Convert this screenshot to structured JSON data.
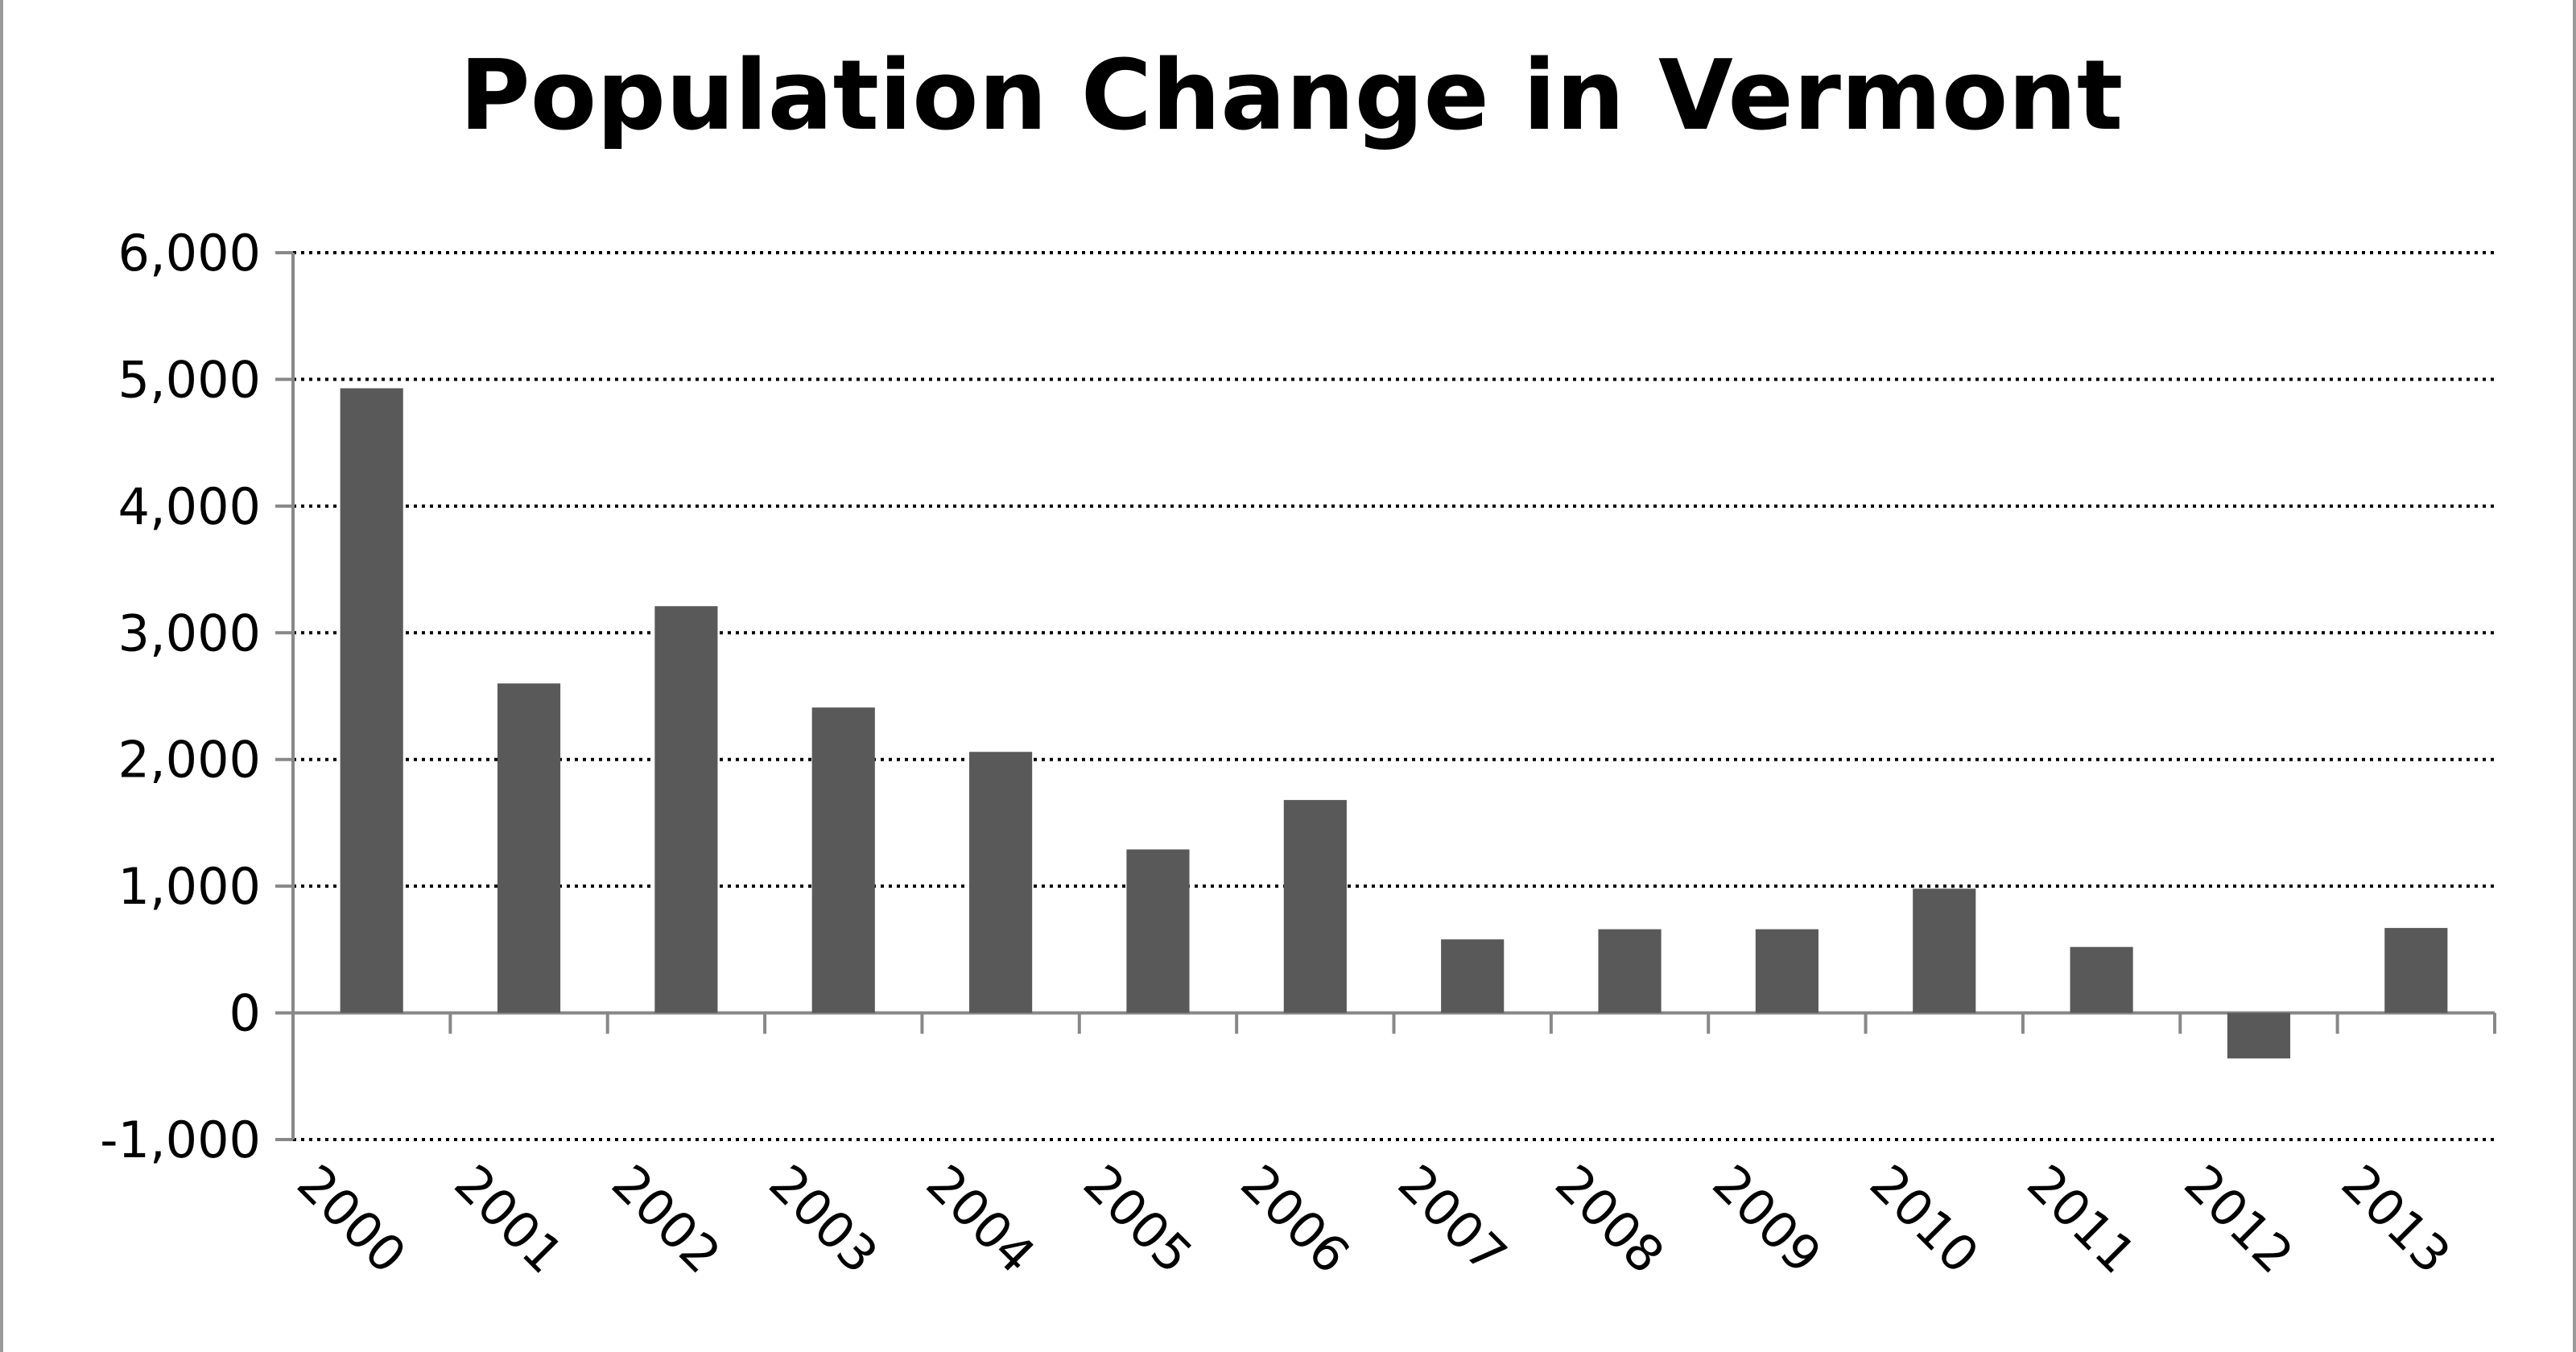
{
  "chart_data": {
    "type": "bar",
    "title": "Population Change in Vermont",
    "xlabel": "",
    "ylabel": "",
    "categories": [
      "2000",
      "2001",
      "2002",
      "2003",
      "2004",
      "2005",
      "2006",
      "2007",
      "2008",
      "2009",
      "2010",
      "2011",
      "2012",
      "2013"
    ],
    "values": [
      4930,
      2600,
      3210,
      2410,
      2060,
      1290,
      1680,
      580,
      660,
      660,
      980,
      520,
      -360,
      670
    ],
    "ylim": [
      -1000,
      6000
    ],
    "yticks": [
      6000,
      5000,
      4000,
      3000,
      2000,
      1000,
      0,
      -1000
    ],
    "ytick_labels": [
      "6,000",
      "5,000",
      "4,000",
      "3,000",
      "2,000",
      "1,000",
      "0",
      "-1,000"
    ],
    "grid": true,
    "grid_style": "dotted",
    "legend": "none",
    "bar_color": "#595959"
  }
}
